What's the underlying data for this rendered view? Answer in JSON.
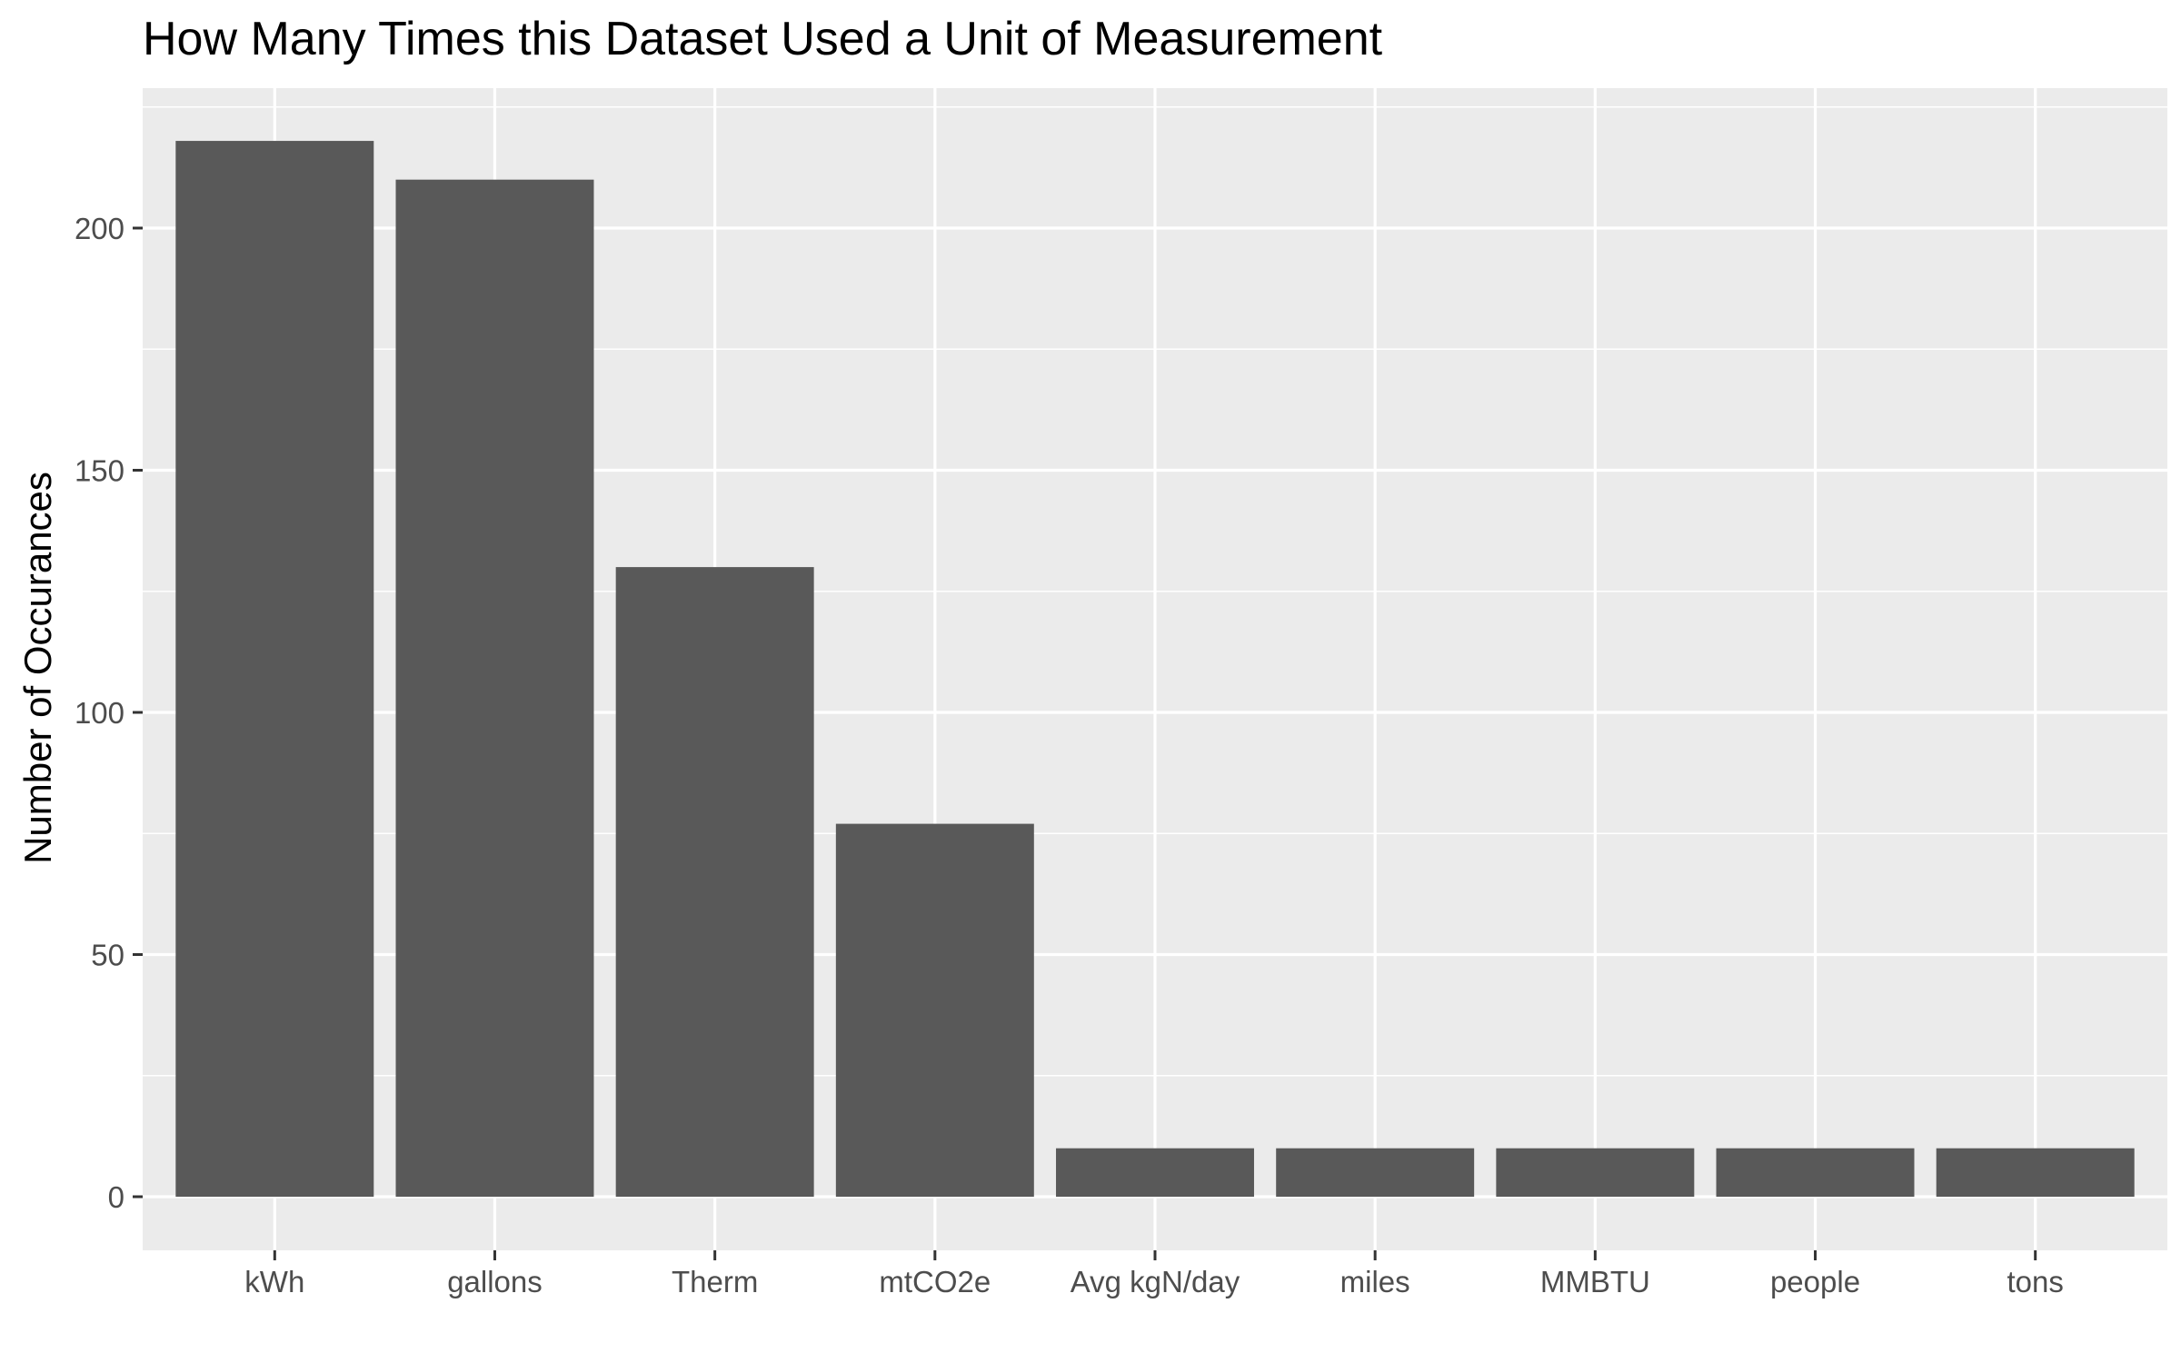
{
  "chart_data": {
    "type": "bar",
    "title": "How Many Times this Dataset Used a Unit of Measurement",
    "xlabel": "",
    "ylabel": "Number of Occurances",
    "categories": [
      "kWh",
      "gallons",
      "Therm",
      "mtCO2e",
      "Avg kgN/day",
      "miles",
      "MMBTU",
      "people",
      "tons"
    ],
    "values": [
      218,
      210,
      130,
      77,
      10,
      10,
      10,
      10,
      10
    ],
    "ylim": [
      0,
      229
    ],
    "yticks": [
      0,
      50,
      100,
      150,
      200
    ],
    "grid": true,
    "legend": "none",
    "colors": {
      "bar": "#595959",
      "panel_background": "#ebebeb",
      "grid_major": "#ffffff",
      "tick_mark": "#333333",
      "tick_label": "#4d4d4d",
      "text": "#000000"
    }
  }
}
